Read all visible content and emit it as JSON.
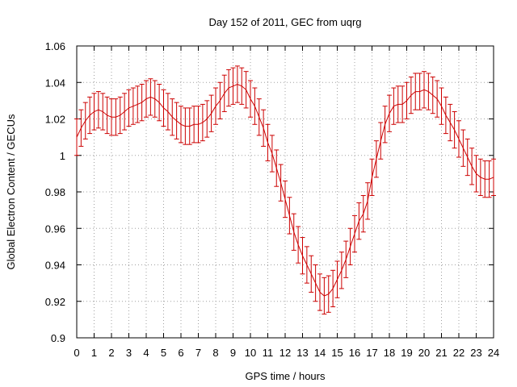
{
  "chart_data": {
    "type": "line",
    "title": "Day 152 of 2011, GEC from uqrg",
    "xlabel": "GPS time / hours",
    "ylabel": "Global Electron Content / GECUs",
    "xlim": [
      0,
      24
    ],
    "ylim": [
      0.9,
      1.06
    ],
    "x_ticks": [
      "0",
      "1",
      "2",
      "3",
      "4",
      "5",
      "6",
      "7",
      "8",
      "9",
      "10",
      "11",
      "12",
      "13",
      "14",
      "15",
      "16",
      "17",
      "18",
      "19",
      "20",
      "21",
      "22",
      "23",
      "24"
    ],
    "y_ticks": [
      "0.9",
      "0.92",
      "0.94",
      "0.96",
      "0.98",
      "1",
      "1.02",
      "1.04",
      "1.06"
    ],
    "grid": true,
    "series_color": "#cc0000",
    "error": 0.01,
    "x": [
      0,
      0.25,
      0.5,
      0.75,
      1,
      1.25,
      1.5,
      1.75,
      2,
      2.25,
      2.5,
      2.75,
      3,
      3.25,
      3.5,
      3.75,
      4,
      4.25,
      4.5,
      4.75,
      5,
      5.25,
      5.5,
      5.75,
      6,
      6.25,
      6.5,
      6.75,
      7,
      7.25,
      7.5,
      7.75,
      8,
      8.25,
      8.5,
      8.75,
      9,
      9.25,
      9.5,
      9.75,
      10,
      10.25,
      10.5,
      10.75,
      11,
      11.25,
      11.5,
      11.75,
      12,
      12.25,
      12.5,
      12.75,
      13,
      13.25,
      13.5,
      13.75,
      14,
      14.25,
      14.5,
      14.75,
      15,
      15.25,
      15.5,
      15.75,
      16,
      16.25,
      16.5,
      16.75,
      17,
      17.25,
      17.5,
      17.75,
      18,
      18.25,
      18.5,
      18.75,
      19,
      19.25,
      19.5,
      19.75,
      20,
      20.25,
      20.5,
      20.75,
      21,
      21.25,
      21.5,
      21.75,
      22,
      22.25,
      22.5,
      22.75,
      23,
      23.25,
      23.5,
      23.75,
      24
    ],
    "y": [
      1.01,
      1.015,
      1.019,
      1.022,
      1.024,
      1.025,
      1.024,
      1.022,
      1.021,
      1.021,
      1.022,
      1.024,
      1.026,
      1.027,
      1.028,
      1.029,
      1.031,
      1.032,
      1.031,
      1.029,
      1.026,
      1.024,
      1.021,
      1.019,
      1.017,
      1.016,
      1.016,
      1.017,
      1.017,
      1.018,
      1.02,
      1.023,
      1.027,
      1.03,
      1.034,
      1.037,
      1.038,
      1.039,
      1.038,
      1.036,
      1.031,
      1.027,
      1.021,
      1.015,
      1.007,
      1.001,
      0.993,
      0.985,
      0.976,
      0.967,
      0.958,
      0.951,
      0.945,
      0.94,
      0.935,
      0.93,
      0.925,
      0.923,
      0.924,
      0.927,
      0.932,
      0.937,
      0.943,
      0.95,
      0.957,
      0.964,
      0.968,
      0.975,
      0.988,
      0.998,
      1.008,
      1.017,
      1.023,
      1.027,
      1.028,
      1.028,
      1.03,
      1.033,
      1.035,
      1.035,
      1.036,
      1.035,
      1.033,
      1.031,
      1.027,
      1.022,
      1.018,
      1.014,
      1.009,
      1.004,
      0.999,
      0.994,
      0.99,
      0.988,
      0.987,
      0.987,
      0.988
    ]
  }
}
